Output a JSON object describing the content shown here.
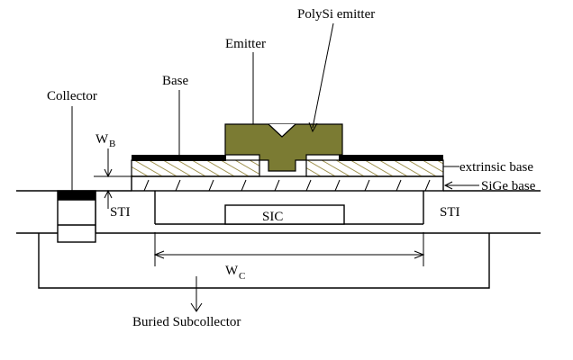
{
  "labels": {
    "polysi_emitter": "PolySi emitter",
    "emitter": "Emitter",
    "base": "Base",
    "collector": "Collector",
    "wb_main": "W",
    "wb_sub": "B",
    "extrinsic_base": "extrinsic base",
    "sige_base": "SiGe base",
    "sti_left": "STI",
    "sti_right": "STI",
    "sic": "SIC",
    "wc_main": "W",
    "wc_sub": "C",
    "buried_subcollector": "Buried Subcollector"
  },
  "colors": {
    "polysi": "#7b7b33",
    "hatch": "#8a7a2a",
    "contact": "#000000",
    "line": "#000000",
    "background": "#ffffff"
  }
}
